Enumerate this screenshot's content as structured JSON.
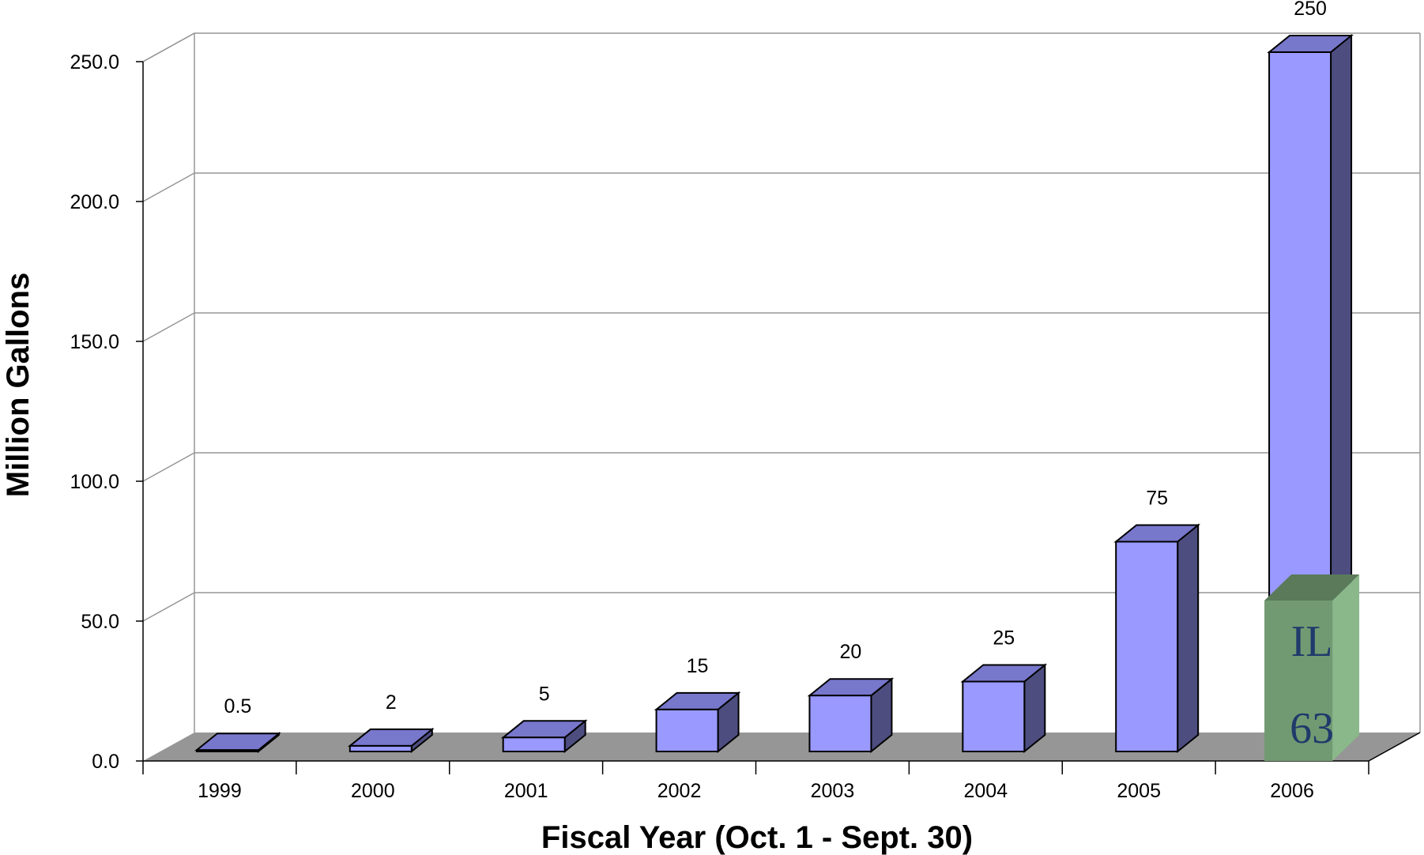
{
  "chart_data": {
    "type": "bar",
    "categories": [
      "1999",
      "2000",
      "2001",
      "2002",
      "2003",
      "2004",
      "2005",
      "2006"
    ],
    "values": [
      0.5,
      2,
      5,
      15,
      20,
      25,
      75,
      250
    ],
    "data_labels": [
      "0.5",
      "2",
      "5",
      "15",
      "20",
      "25",
      "75",
      "250"
    ],
    "xlabel": "Fiscal Year (Oct. 1 - Sept. 30)",
    "ylabel": "Million Gallons",
    "ylim": [
      0,
      250
    ],
    "yticks": [
      "0.0",
      "50.0",
      "100.0",
      "150.0",
      "200.0",
      "250.0"
    ],
    "grid": true,
    "three_d": true,
    "colors": {
      "bar_front": "#9999ff",
      "bar_top": "#7777cc",
      "bar_side": "#4d4d80",
      "floor": "#969696",
      "gridline": "#969696"
    },
    "annotation": {
      "category": "2006",
      "value": 63,
      "text_lines": [
        "IL",
        "63"
      ],
      "fill_front": "#729a72",
      "fill_top": "#5a7a5a",
      "fill_side": "#8ab88a",
      "text_color": "#1f3a6b"
    }
  }
}
